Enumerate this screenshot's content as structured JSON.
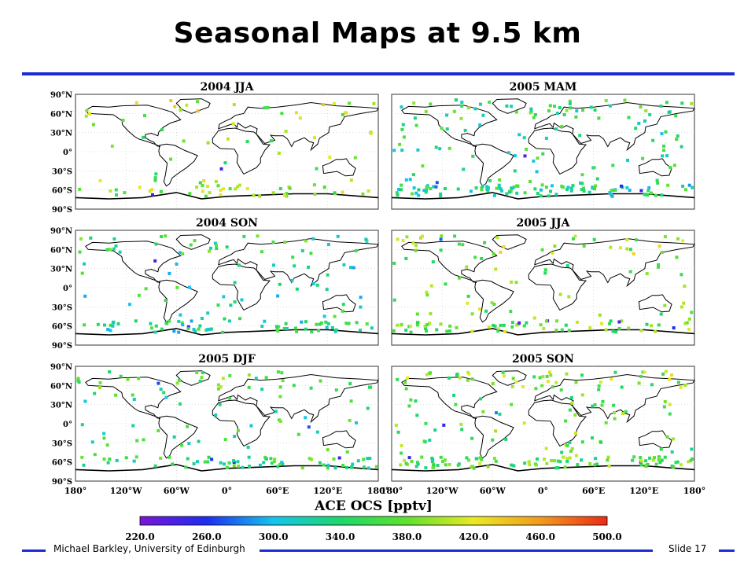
{
  "slide": {
    "title": "Seasonal Maps at 9.5 km",
    "author": "Michael Barkley, University of Edinburgh",
    "slide_number": "Slide 17"
  },
  "lat_labels": [
    "90°N",
    "60°N",
    "30°N",
    "0°",
    "30°S",
    "60°S",
    "90°S"
  ],
  "lon_labels": [
    "180°",
    "120°W",
    "60°W",
    "0°",
    "60°E",
    "120°E",
    "180°"
  ],
  "colorbar": {
    "title": "ACE OCS [pptv]",
    "ticks": [
      "220.0",
      "260.0",
      "300.0",
      "340.0",
      "380.0",
      "420.0",
      "460.0",
      "500.0"
    ],
    "min": 220,
    "max": 500,
    "colors": [
      "#7a16d8",
      "#1e2ef0",
      "#15c4ef",
      "#1cd86a",
      "#5fe22d",
      "#e9ea23",
      "#f39a1d",
      "#ec2b14"
    ]
  },
  "maps": [
    {
      "title": "2004 JJA",
      "density": "low",
      "color_bias": 0.64
    },
    {
      "title": "2005 MAM",
      "density": "high",
      "color_bias": 0.48
    },
    {
      "title": "2004 SON",
      "density": "medium",
      "color_bias": 0.46
    },
    {
      "title": "2005 JJA",
      "density": "medium",
      "color_bias": 0.6
    },
    {
      "title": "2005 DJF",
      "density": "medium",
      "color_bias": 0.5
    },
    {
      "title": "2005 SON",
      "density": "high",
      "color_bias": 0.58
    }
  ]
}
